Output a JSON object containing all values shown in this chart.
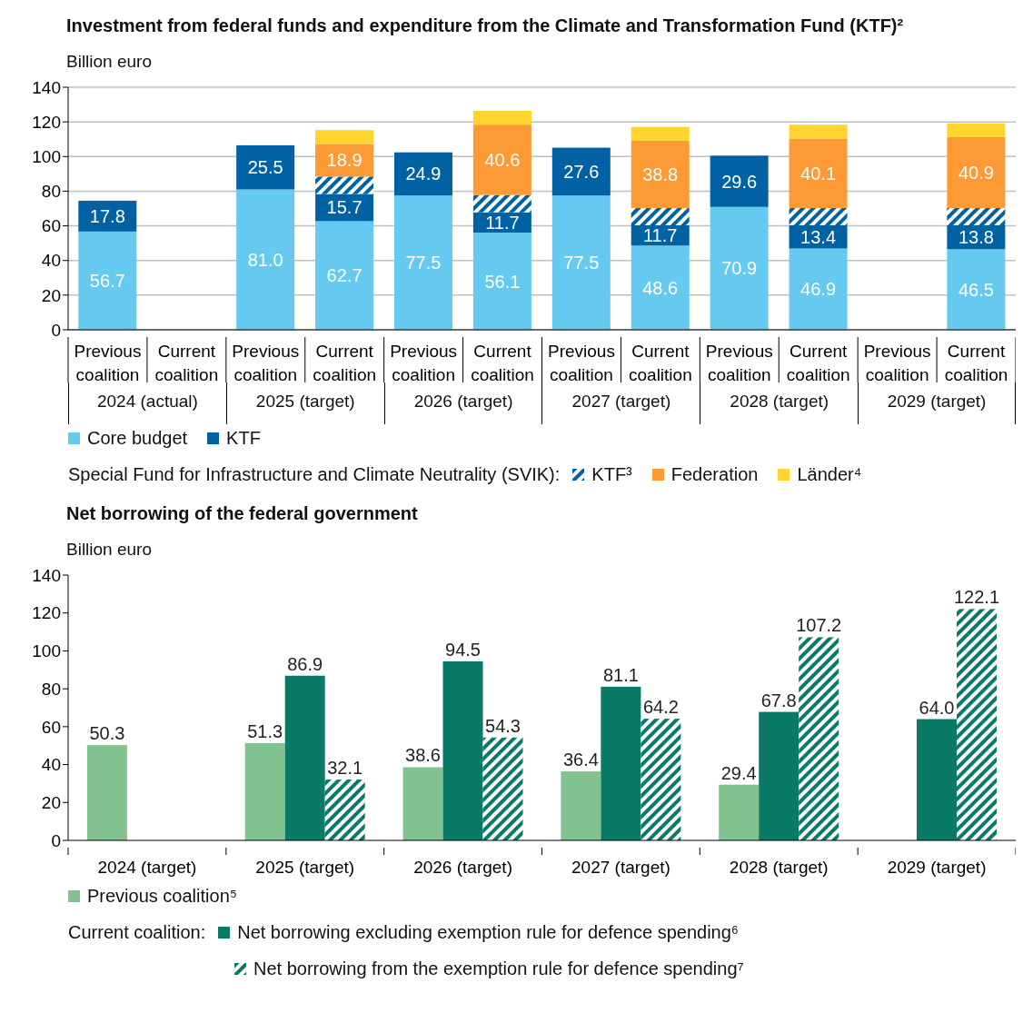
{
  "chart_data": [
    {
      "type": "bar",
      "title": "Investment from federal funds and expenditure from the Climate and Transformation Fund (KTF)²",
      "ylabel": "Billion euro",
      "stacked": true,
      "ylim": [
        0,
        140
      ],
      "yticks": [
        0,
        20,
        40,
        60,
        80,
        100,
        120,
        140
      ],
      "grid": "y",
      "legend": "bottom",
      "legend_title": "Special Fund for Infrastructure and Climate Neutrality (SVIK):",
      "categories": [
        "Previous coalition",
        "Current coalition",
        "Previous coalition",
        "Current coalition",
        "Previous coalition",
        "Current coalition",
        "Previous coalition",
        "Current coalition",
        "Previous coalition",
        "Current coalition",
        "Previous coalition",
        "Current coalition"
      ],
      "annotations": [
        "2024 (actual)",
        "2025 (target)",
        "2026 (target)",
        "2027 (target)",
        "2028 (target)",
        "2029 (target)"
      ],
      "series": [
        {
          "name": "Core budget",
          "color": "#66c9f0",
          "values": [
            56.7,
            null,
            81.0,
            62.7,
            77.5,
            56.1,
            77.5,
            48.6,
            70.9,
            46.9,
            null,
            46.5
          ],
          "value_labels": [
            "56.7",
            null,
            "81.0",
            "62.7",
            "77.5",
            "56.1",
            "77.5",
            "48.6",
            "70.9",
            "46.9",
            null,
            "46.5"
          ]
        },
        {
          "name": "KTF",
          "color": "#0062a3",
          "values": [
            17.8,
            null,
            25.5,
            15.7,
            24.9,
            11.7,
            27.6,
            11.7,
            29.6,
            13.4,
            null,
            13.8
          ],
          "value_labels": [
            "17.8",
            null,
            "25.5",
            "15.7",
            "24.9",
            "11.7",
            "27.6",
            "11.7",
            "29.6",
            "13.4",
            null,
            "13.8"
          ]
        },
        {
          "name": "KTF³",
          "color": "#0062a3",
          "values": [
            null,
            null,
            null,
            10,
            null,
            10,
            null,
            10,
            null,
            10,
            null,
            10
          ]
        },
        {
          "name": "Federation",
          "color": "#fd9a35",
          "values": [
            null,
            null,
            null,
            18.9,
            null,
            40.6,
            null,
            38.8,
            null,
            40.1,
            null,
            40.9
          ],
          "value_labels": [
            null,
            null,
            null,
            "18.9",
            null,
            "40.6",
            null,
            "38.8",
            null,
            "40.1",
            null,
            "40.9"
          ]
        },
        {
          "name": "Länder⁴",
          "color": "#fed52d",
          "values": [
            null,
            null,
            null,
            8,
            null,
            8,
            null,
            8,
            null,
            8,
            null,
            8
          ]
        }
      ]
    },
    {
      "type": "bar",
      "title": "Net borrowing of the federal government",
      "ylabel": "Billion euro",
      "ylim": [
        0,
        140
      ],
      "yticks": [
        0,
        20,
        40,
        60,
        80,
        100,
        120,
        140
      ],
      "legend": "bottom",
      "legend_title": "Current coalition:",
      "categories": [
        "2024 (target)",
        "2025 (target)",
        "2026 (target)",
        "2027 (target)",
        "2028 (target)",
        "2029 (target)"
      ],
      "series": [
        {
          "name": "Previous coalition⁵",
          "color": "#82c28e",
          "values": [
            50.3,
            51.3,
            38.6,
            36.4,
            29.4,
            null
          ],
          "value_labels": [
            "50.3",
            "51.3",
            "38.6",
            "36.4",
            "29.4",
            null
          ]
        },
        {
          "name": "Net borrowing excluding exemption rule for defence spending⁶",
          "color": "#0a7a66",
          "values": [
            null,
            86.9,
            94.5,
            81.1,
            67.8,
            64.0
          ],
          "value_labels": [
            null,
            "86.9",
            "94.5",
            "81.1",
            "67.8",
            "64.0"
          ]
        },
        {
          "name": "Net borrowing from the exemption rule for defence spending⁷",
          "color": "#0a7a66",
          "values": [
            null,
            32.1,
            54.3,
            64.2,
            107.2,
            122.1
          ],
          "value_labels": [
            null,
            "32.1",
            "54.3",
            "64.2",
            "107.2",
            "122.1"
          ]
        }
      ]
    }
  ]
}
